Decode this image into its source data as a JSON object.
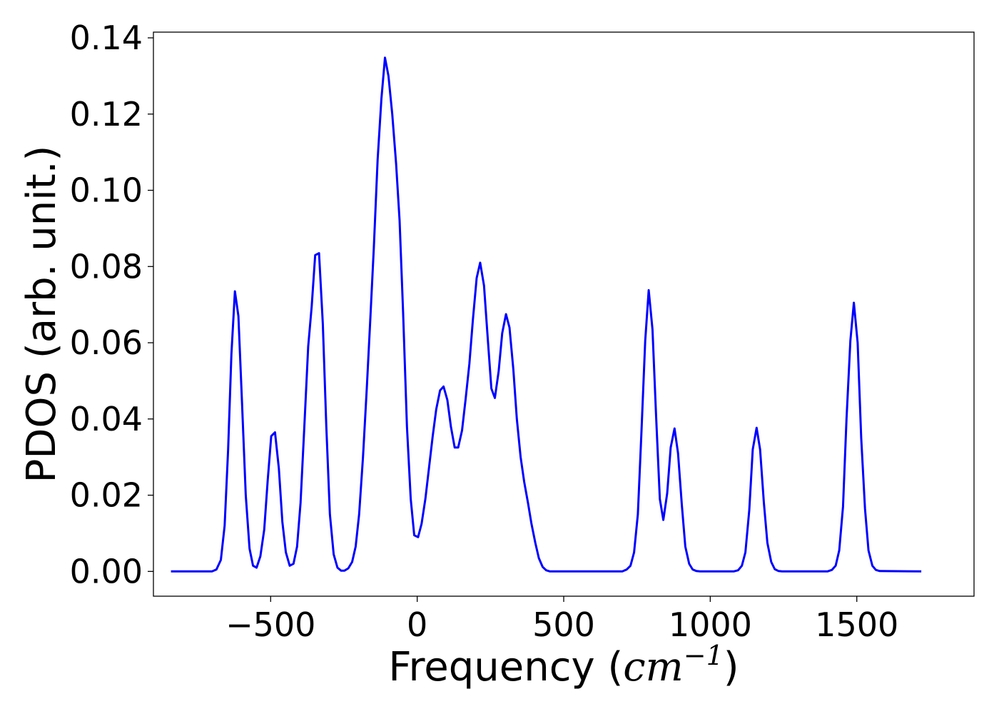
{
  "chart_data": {
    "type": "line",
    "title": "",
    "xlabel": {
      "text": "Frequency (",
      "unit_base": "cm",
      "unit_exponent": "−1",
      "close": ")"
    },
    "ylabel": "PDOS (arb. unit.)",
    "xlim": [
      -900,
      1900
    ],
    "ylim": [
      -0.0065,
      0.1415
    ],
    "x_ticks": [
      -500,
      0,
      500,
      1000,
      1500
    ],
    "x_tick_labels": [
      "−500",
      "0",
      "500",
      "1000",
      "1500"
    ],
    "y_ticks": [
      0.0,
      0.02,
      0.04,
      0.06,
      0.08,
      0.1,
      0.12,
      0.14
    ],
    "y_tick_labels": [
      "0.00",
      "0.02",
      "0.04",
      "0.06",
      "0.08",
      "0.10",
      "0.12",
      "0.14"
    ],
    "grid": false,
    "legend": "none",
    "series": [
      {
        "color": "#0000ff",
        "x": [
          -840,
          -700,
          -685,
          -670,
          -657,
          -645,
          -634,
          -622,
          -610,
          -598,
          -585,
          -572,
          -560,
          -548,
          -535,
          -522,
          -510,
          -498,
          -485,
          -472,
          -460,
          -448,
          -435,
          -422,
          -410,
          -398,
          -385,
          -372,
          -360,
          -348,
          -335,
          -322,
          -310,
          -298,
          -285,
          -272,
          -260,
          -248,
          -235,
          -222,
          -210,
          -198,
          -185,
          -172,
          -160,
          -148,
          -135,
          -122,
          -110,
          -98,
          -85,
          -72,
          -60,
          -48,
          -35,
          -22,
          -10,
          3,
          15,
          28,
          40,
          53,
          65,
          78,
          90,
          103,
          115,
          128,
          140,
          153,
          165,
          178,
          190,
          203,
          215,
          228,
          240,
          253,
          265,
          278,
          290,
          303,
          315,
          328,
          340,
          353,
          365,
          378,
          390,
          403,
          415,
          428,
          440,
          453,
          465,
          478,
          490,
          500,
          700,
          715,
          728,
          740,
          753,
          765,
          778,
          790,
          803,
          815,
          828,
          840,
          853,
          865,
          878,
          890,
          903,
          915,
          928,
          940,
          953,
          965,
          1080,
          1095,
          1108,
          1120,
          1133,
          1145,
          1158,
          1170,
          1183,
          1195,
          1208,
          1220,
          1233,
          1245,
          1258,
          1400,
          1415,
          1428,
          1440,
          1453,
          1465,
          1478,
          1490,
          1503,
          1515,
          1528,
          1540,
          1553,
          1565,
          1578,
          1720
        ],
        "y": [
          0.0,
          0.0,
          0.0005,
          0.003,
          0.012,
          0.032,
          0.057,
          0.0735,
          0.067,
          0.045,
          0.02,
          0.006,
          0.0015,
          0.001,
          0.004,
          0.011,
          0.024,
          0.0355,
          0.0365,
          0.027,
          0.013,
          0.005,
          0.0015,
          0.002,
          0.0065,
          0.018,
          0.038,
          0.059,
          0.0695,
          0.083,
          0.0835,
          0.065,
          0.038,
          0.015,
          0.0045,
          0.001,
          0.0002,
          0.0002,
          0.0008,
          0.0025,
          0.0065,
          0.015,
          0.03,
          0.048,
          0.066,
          0.085,
          0.108,
          0.124,
          0.1348,
          0.13,
          0.12,
          0.107,
          0.092,
          0.068,
          0.038,
          0.019,
          0.0095,
          0.009,
          0.0125,
          0.019,
          0.027,
          0.0355,
          0.0425,
          0.0475,
          0.0485,
          0.045,
          0.038,
          0.0325,
          0.0325,
          0.037,
          0.045,
          0.0545,
          0.066,
          0.077,
          0.081,
          0.075,
          0.062,
          0.048,
          0.0455,
          0.0525,
          0.0625,
          0.0675,
          0.064,
          0.053,
          0.04,
          0.03,
          0.0235,
          0.018,
          0.0125,
          0.0075,
          0.0035,
          0.0012,
          0.0003,
          0.0,
          0.0,
          0.0,
          0.0,
          0.0,
          0.0,
          0.0005,
          0.0015,
          0.005,
          0.015,
          0.036,
          0.0605,
          0.0738,
          0.0635,
          0.041,
          0.019,
          0.0135,
          0.0205,
          0.0325,
          0.0375,
          0.031,
          0.0175,
          0.0065,
          0.002,
          0.0005,
          0.0001,
          0.0,
          0.0,
          0.0003,
          0.0015,
          0.005,
          0.016,
          0.032,
          0.0377,
          0.032,
          0.018,
          0.0075,
          0.0025,
          0.0006,
          0.0001,
          0.0,
          0.0,
          0.0,
          0.0004,
          0.0015,
          0.0055,
          0.017,
          0.04,
          0.0605,
          0.0705,
          0.06,
          0.035,
          0.0165,
          0.0055,
          0.0015,
          0.0004,
          0.0001,
          0.0
        ]
      }
    ]
  }
}
